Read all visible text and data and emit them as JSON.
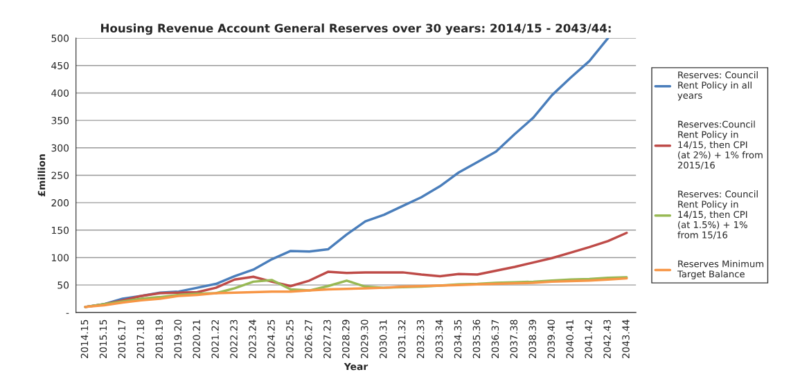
{
  "chart_data": {
    "type": "line",
    "title": "Housing Revenue Account General Reserves over 30 years: 2014/15 - 2043/44:",
    "xlabel": "Year",
    "ylabel": "£million",
    "categories": [
      "2014.15",
      "2015.15",
      "2016.17",
      "2017.18",
      "2018.19",
      "2019.20",
      "2020.21",
      "2021.22",
      "2022.23",
      "2023.24",
      "2024.25",
      "2025.25",
      "2026.27",
      "2027.23",
      "2028.29",
      "2029.30",
      "2030.31",
      "2031.32",
      "2032.33",
      "2033.34",
      "2034.35",
      "2035.36",
      "2036.37",
      "2037.38",
      "2038.39",
      "2039.40",
      "2040.41",
      "2041.42",
      "2042.43",
      "2043.44"
    ],
    "series": [
      {
        "name": "Reserves: Council Rent Policy in all years",
        "color": "#4a7ebb",
        "values": [
          10,
          15,
          25,
          30,
          36,
          38,
          45,
          52,
          66,
          78,
          97,
          112,
          111,
          115,
          142,
          166,
          178,
          194,
          210,
          230,
          255,
          274,
          293,
          325,
          355,
          396,
          428,
          458,
          500,
          null
        ]
      },
      {
        "name": "Reserves:Council Rent Policy in 14/15, then CPI (at 2%) + 1% from 2015/16",
        "color": "#be4b48",
        "values": [
          10,
          15,
          22,
          30,
          35,
          36,
          37,
          45,
          60,
          65,
          56,
          48,
          58,
          74,
          72,
          73,
          73,
          73,
          69,
          66,
          70,
          69,
          76,
          83,
          91,
          99,
          109,
          119,
          130,
          145
        ]
      },
      {
        "name": "Reserves: Council Rent Policy in 14/15, then CPI (at 1.5%) + 1% from 15/16",
        "color": "#98b954",
        "values": [
          10,
          15,
          20,
          25,
          28,
          32,
          34,
          35,
          44,
          56,
          59,
          42,
          40,
          48,
          58,
          47,
          45,
          46,
          47,
          49,
          51,
          52,
          54,
          55,
          56,
          58,
          60,
          61,
          63,
          64
        ]
      },
      {
        "name": "Reserves Minimum Target Balance",
        "color": "#f79646",
        "values": [
          10,
          13,
          18,
          22,
          25,
          30,
          32,
          35,
          36,
          37,
          38,
          38,
          40,
          42,
          43,
          44,
          45,
          47,
          48,
          49,
          50,
          51,
          52,
          53,
          54,
          56,
          57,
          58,
          60,
          62
        ]
      }
    ],
    "ylim": [
      0,
      500
    ],
    "yticks": [
      {
        "value": 0,
        "label": "-"
      },
      50,
      100,
      150,
      200,
      250,
      300,
      350,
      400,
      450,
      500
    ],
    "grid": "y",
    "legend": "right",
    "marker": "none",
    "line_style": "solid"
  }
}
